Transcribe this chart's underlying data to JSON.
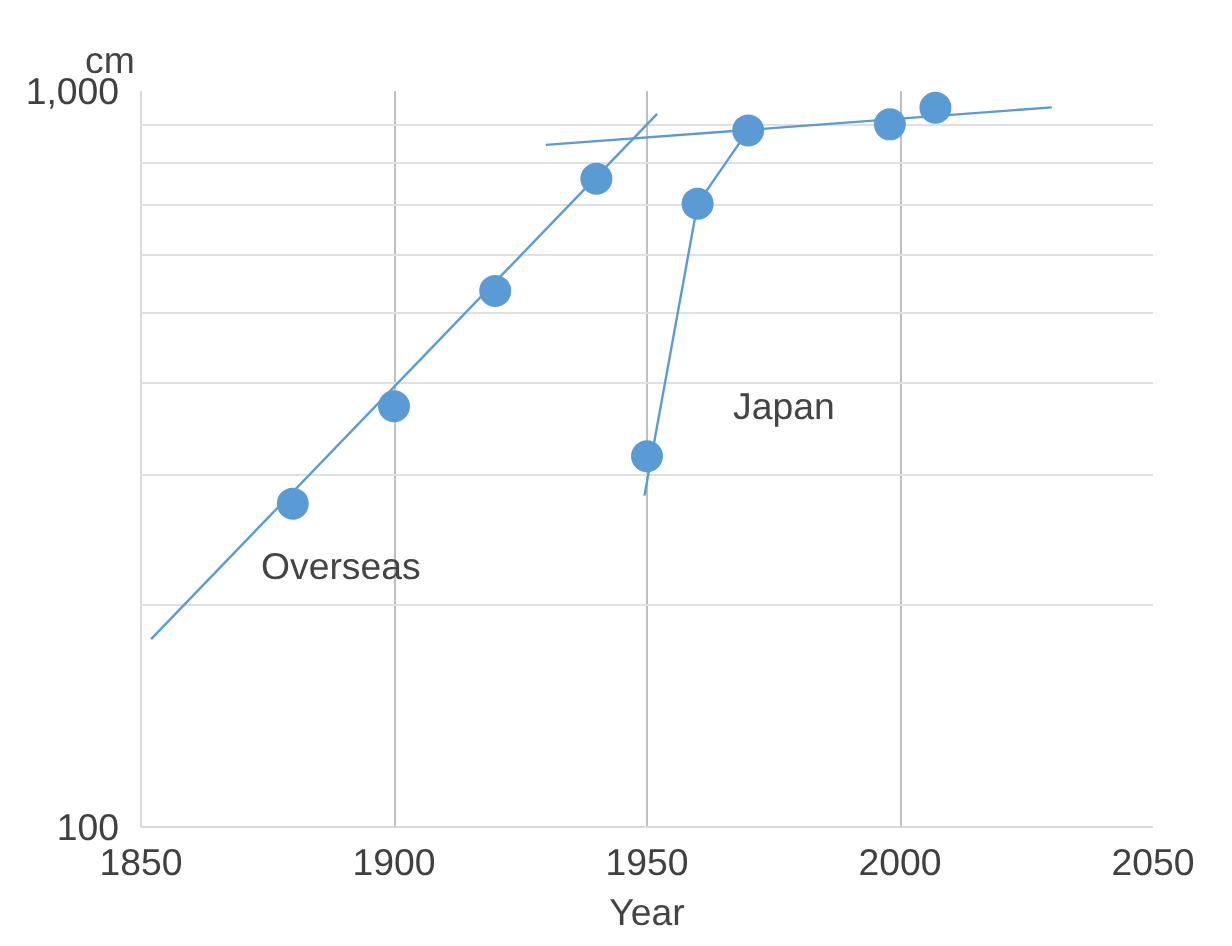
{
  "chart_data": {
    "type": "scatter",
    "xlabel": "Year",
    "ylabel": "cm",
    "log": "y",
    "grid": true,
    "xlim": [
      1850,
      2050
    ],
    "xticks": [
      1850,
      1900,
      1950,
      2000,
      2050
    ],
    "ylim": [
      100,
      1000
    ],
    "yticks": [
      100,
      {
        "value": 200,
        "label": null
      },
      {
        "value": 300,
        "label": null
      },
      {
        "value": 400,
        "label": null
      },
      {
        "value": 500,
        "label": null
      },
      {
        "value": 600,
        "label": null
      },
      {
        "value": 700,
        "label": null
      },
      {
        "value": 800,
        "label": null
      },
      {
        "value": 900,
        "label": null
      },
      {
        "value": 1000,
        "label": "1,000"
      }
    ],
    "series": [
      {
        "marker": "circle",
        "color": "#5b9bd5",
        "x": [
          1880,
          1900,
          1920,
          1940,
          1950,
          1960,
          1970,
          1998,
          2007
        ],
        "values": [
          275,
          373,
          535,
          760,
          319,
          703,
          884,
          901,
          949
        ]
      },
      {
        "type": "line",
        "color": "#5b9bd5",
        "x": [
          1852,
          1952
        ],
        "values": [
          180,
          931
        ]
      },
      {
        "type": "line",
        "color": "#5b9bd5",
        "x": [
          1949.5,
          1960,
          1970
        ],
        "values": [
          282,
          703,
          884
        ]
      },
      {
        "type": "line",
        "color": "#5b9bd5",
        "x": [
          1930,
          2030
        ],
        "values": [
          845,
          950
        ]
      }
    ],
    "annotations": [
      "Overseas",
      "Japan"
    ]
  }
}
